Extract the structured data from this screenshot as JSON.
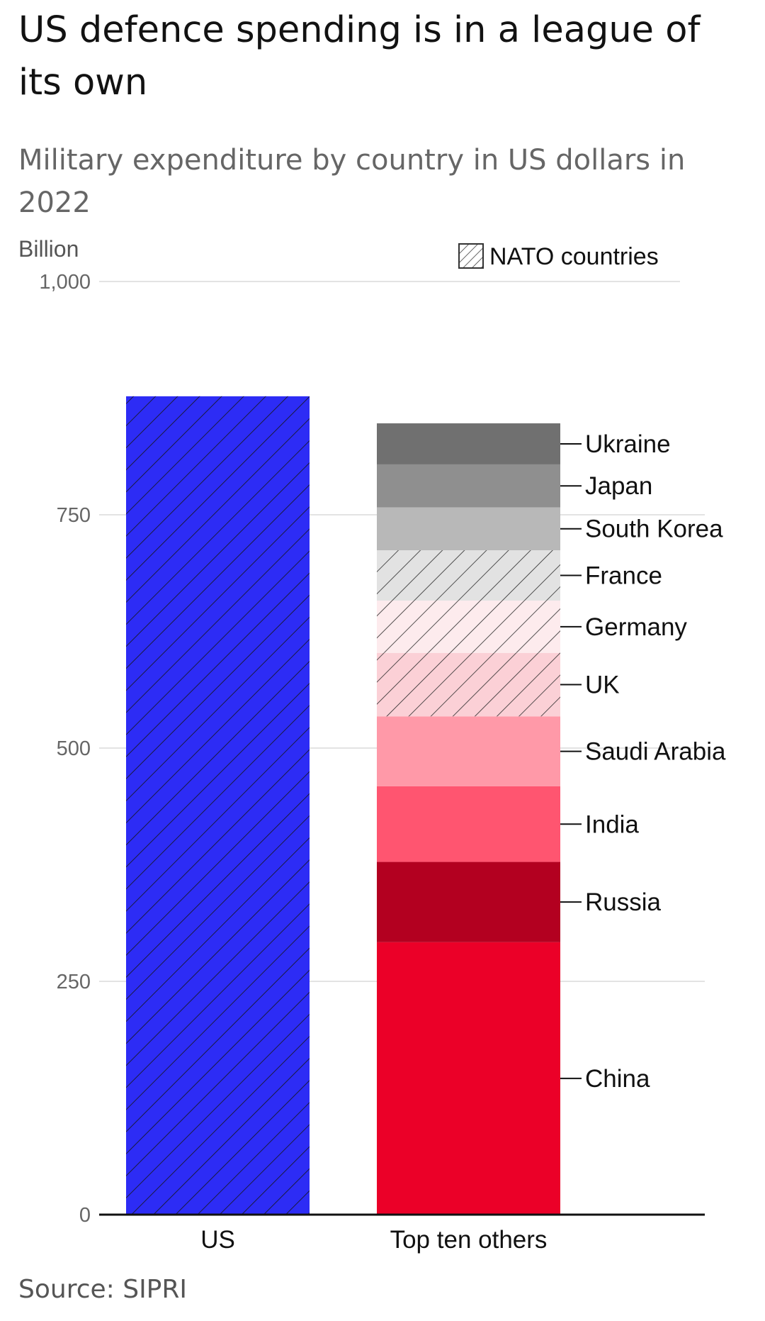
{
  "title": "US defence spending is in a league of its own",
  "subtitle": "Military expenditure by country in US dollars in 2022",
  "source": "Source: SIPRI",
  "chart_data": {
    "type": "bar",
    "stacked": true,
    "yunit": "Billion",
    "ylim": [
      0,
      1000
    ],
    "yticks": [
      0,
      250,
      500,
      750,
      1000
    ],
    "ytick_labels": [
      "0",
      "250",
      "500",
      "750",
      "1,000"
    ],
    "grid": true,
    "legend": {
      "label": "NATO countries",
      "placement": "top-right",
      "marker": "hatched"
    },
    "categories": [
      "US",
      "Top ten others"
    ],
    "bars": [
      {
        "category": "US",
        "segments": [
          {
            "name": "US",
            "value": 877,
            "color": "#2d2cf5",
            "nato": true
          }
        ]
      },
      {
        "category": "Top ten others",
        "segments": [
          {
            "name": "China",
            "value": 292,
            "color": "#eb0028",
            "nato": false
          },
          {
            "name": "Russia",
            "value": 86,
            "color": "#b30020",
            "nato": false
          },
          {
            "name": "India",
            "value": 81,
            "color": "#ff5570",
            "nato": false
          },
          {
            "name": "Saudi Arabia",
            "value": 75,
            "color": "#ff99a8",
            "nato": false
          },
          {
            "name": "UK",
            "value": 68,
            "color": "#fbd0d6",
            "nato": true
          },
          {
            "name": "Germany",
            "value": 56,
            "color": "#fdebed",
            "nato": true
          },
          {
            "name": "France",
            "value": 54,
            "color": "#e2e2e2",
            "nato": true
          },
          {
            "name": "South Korea",
            "value": 46,
            "color": "#b8b8b8",
            "nato": false
          },
          {
            "name": "Japan",
            "value": 46,
            "color": "#8f8f8f",
            "nato": false
          },
          {
            "name": "Ukraine",
            "value": 44,
            "color": "#707070",
            "nato": false
          }
        ]
      }
    ]
  }
}
